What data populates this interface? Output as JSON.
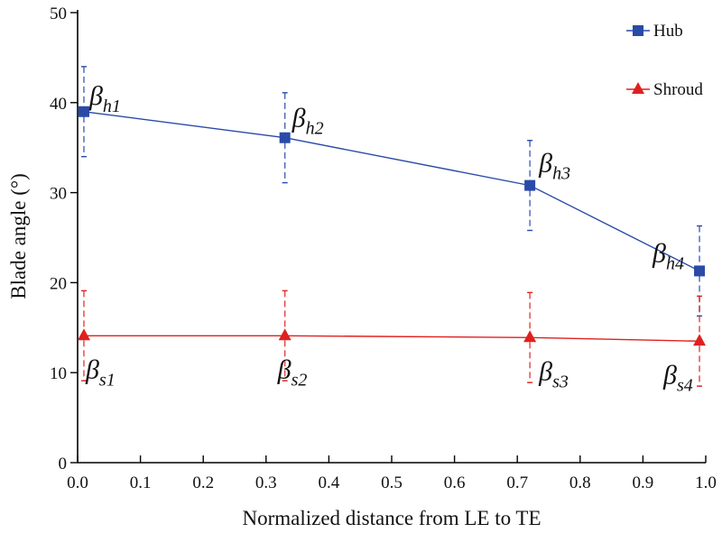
{
  "chart_data": {
    "type": "line",
    "title": "",
    "xlabel": "Normalized distance from LE to TE",
    "ylabel": "Blade angle (°)",
    "xlim": [
      0,
      1.0
    ],
    "ylim": [
      0,
      50
    ],
    "xticks": [
      "0.0",
      "0.1",
      "0.2",
      "0.3",
      "0.4",
      "0.5",
      "0.6",
      "0.7",
      "0.8",
      "0.9",
      "1.0"
    ],
    "yticks": [
      "0",
      "10",
      "20",
      "30",
      "40",
      "50"
    ],
    "grid": false,
    "legend_position": "top-right",
    "series": [
      {
        "name": "Hub",
        "color": "#2a4aa8",
        "marker": "square",
        "x": [
          0.01,
          0.33,
          0.72,
          0.99
        ],
        "y": [
          39.0,
          36.1,
          30.8,
          21.3
        ],
        "error": [
          5,
          5,
          5,
          5
        ],
        "labels": [
          {
            "base": "β",
            "sub": "h1"
          },
          {
            "base": "β",
            "sub": "h2"
          },
          {
            "base": "β",
            "sub": "h3"
          },
          {
            "base": "β",
            "sub": "h4"
          }
        ]
      },
      {
        "name": "Shroud",
        "color": "#e02020",
        "marker": "triangle",
        "x": [
          0.01,
          0.33,
          0.72,
          0.99
        ],
        "y": [
          14.1,
          14.1,
          13.9,
          13.5
        ],
        "error": [
          5,
          5,
          5,
          5
        ],
        "labels": [
          {
            "base": "β",
            "sub": "s1"
          },
          {
            "base": "β",
            "sub": "s2"
          },
          {
            "base": "β",
            "sub": "s3"
          },
          {
            "base": "β",
            "sub": "s4"
          }
        ]
      }
    ]
  }
}
